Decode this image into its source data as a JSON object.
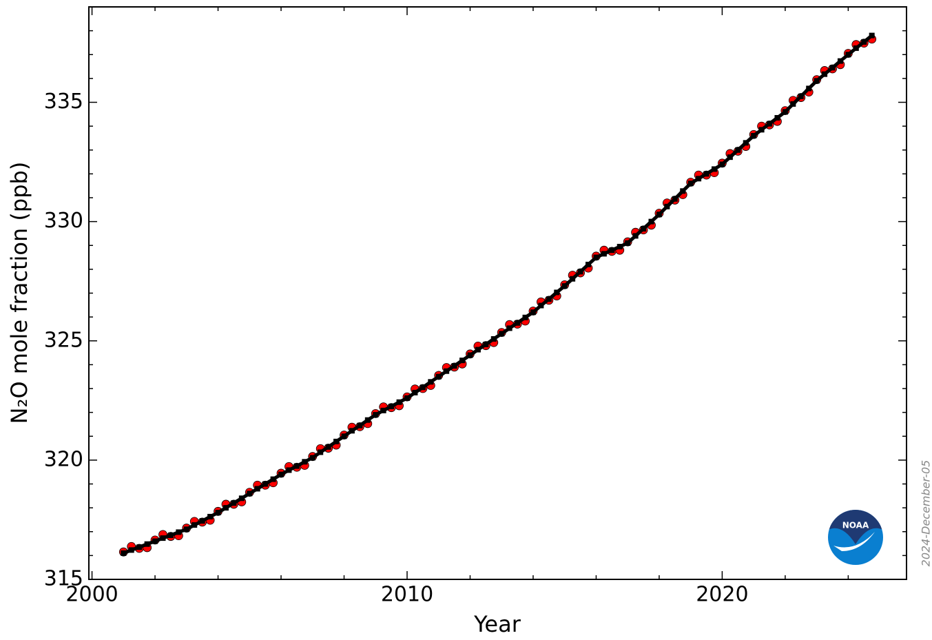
{
  "chart_data": {
    "type": "line",
    "x_label": "Year",
    "y_label": "N₂O mole fraction (ppb)",
    "date_stamp": "2024-December-05",
    "logo_text": "NOAA",
    "x": [
      2001,
      2001.25,
      2001.5,
      2001.75,
      2002,
      2002.25,
      2002.5,
      2002.75,
      2003,
      2003.25,
      2003.5,
      2003.75,
      2004,
      2004.25,
      2004.5,
      2004.75,
      2005,
      2005.25,
      2005.5,
      2005.75,
      2006,
      2006.25,
      2006.5,
      2006.75,
      2007,
      2007.25,
      2007.5,
      2007.75,
      2008,
      2008.25,
      2008.5,
      2008.75,
      2009,
      2009.25,
      2009.5,
      2009.75,
      2010,
      2010.25,
      2010.5,
      2010.75,
      2011,
      2011.25,
      2011.5,
      2011.75,
      2012,
      2012.25,
      2012.5,
      2012.75,
      2013,
      2013.25,
      2013.5,
      2013.75,
      2014,
      2014.25,
      2014.5,
      2014.75,
      2015,
      2015.25,
      2015.5,
      2015.75,
      2016,
      2016.25,
      2016.5,
      2016.75,
      2017,
      2017.25,
      2017.5,
      2017.75,
      2018,
      2018.25,
      2018.5,
      2018.75,
      2019,
      2019.25,
      2019.5,
      2019.75,
      2020,
      2020.25,
      2020.5,
      2020.75,
      2021,
      2021.25,
      2021.5,
      2021.75,
      2022,
      2022.25,
      2022.5,
      2022.75,
      2023,
      2023.25,
      2023.5,
      2023.75,
      2024,
      2024.25,
      2024.5,
      2024.75
    ],
    "series": [
      {
        "color": "#ff0000",
        "marker": "circle",
        "values": [
          316.15,
          316.38,
          316.3,
          316.33,
          316.65,
          316.88,
          316.8,
          316.83,
          317.15,
          317.43,
          317.4,
          317.48,
          317.85,
          318.15,
          318.15,
          318.25,
          318.65,
          318.95,
          318.95,
          319.05,
          319.45,
          319.73,
          319.7,
          319.78,
          320.15,
          320.48,
          320.5,
          320.63,
          321.05,
          321.38,
          321.4,
          321.53,
          321.95,
          322.23,
          322.2,
          322.28,
          322.65,
          322.98,
          323,
          323.13,
          323.55,
          323.88,
          323.9,
          324.03,
          324.45,
          324.78,
          324.8,
          324.93,
          325.35,
          325.68,
          325.7,
          325.83,
          326.25,
          326.63,
          326.7,
          326.88,
          327.35,
          327.75,
          327.85,
          328.05,
          328.55,
          328.8,
          328.75,
          328.8,
          329.15,
          329.55,
          329.65,
          329.85,
          330.35,
          330.78,
          330.9,
          331.13,
          331.65,
          331.95,
          331.95,
          332.05,
          332.45,
          332.85,
          332.95,
          333.15,
          333.65,
          334,
          334.05,
          334.2,
          334.65,
          335.08,
          335.2,
          335.43,
          335.95,
          336.33,
          336.4,
          336.58,
          337.05,
          337.42,
          337.48,
          337.65
        ]
      },
      {
        "color": "#000000",
        "marker": "square",
        "values": [
          316.1,
          316.23,
          316.35,
          316.48,
          316.6,
          316.73,
          316.85,
          316.98,
          317.1,
          317.28,
          317.45,
          317.63,
          317.8,
          318,
          318.2,
          318.4,
          318.6,
          318.8,
          319,
          319.2,
          319.4,
          319.58,
          319.75,
          319.93,
          320.1,
          320.33,
          320.55,
          320.78,
          321,
          321.23,
          321.45,
          321.68,
          321.9,
          322.08,
          322.25,
          322.43,
          322.6,
          322.83,
          323.05,
          323.28,
          323.5,
          323.73,
          323.95,
          324.18,
          324.4,
          324.63,
          324.85,
          325.08,
          325.3,
          325.53,
          325.75,
          325.98,
          326.2,
          326.48,
          326.75,
          327.03,
          327.3,
          327.6,
          327.9,
          328.2,
          328.5,
          328.65,
          328.8,
          328.95,
          329.1,
          329.4,
          329.7,
          330,
          330.3,
          330.63,
          330.95,
          331.28,
          331.6,
          331.8,
          332,
          332.2,
          332.4,
          332.7,
          333,
          333.3,
          333.6,
          333.85,
          334.1,
          334.35,
          334.6,
          334.93,
          335.25,
          335.58,
          335.9,
          336.18,
          336.45,
          336.73,
          337,
          337.27,
          337.53,
          337.8
        ]
      }
    ],
    "xlim": [
      1999.9,
      2025.85
    ],
    "ylim": [
      315,
      339
    ],
    "xticks": [
      2000,
      2010,
      2020
    ],
    "yticks": [
      315,
      320,
      325,
      330,
      335
    ],
    "x_minor_ticks": [
      2002,
      2004,
      2006,
      2008,
      2012,
      2014,
      2016,
      2018,
      2022,
      2024
    ],
    "y_minor_ticks": [
      316,
      317,
      318,
      319,
      321,
      322,
      323,
      324,
      326,
      327,
      328,
      329,
      331,
      332,
      333,
      334,
      336,
      337,
      338
    ]
  }
}
